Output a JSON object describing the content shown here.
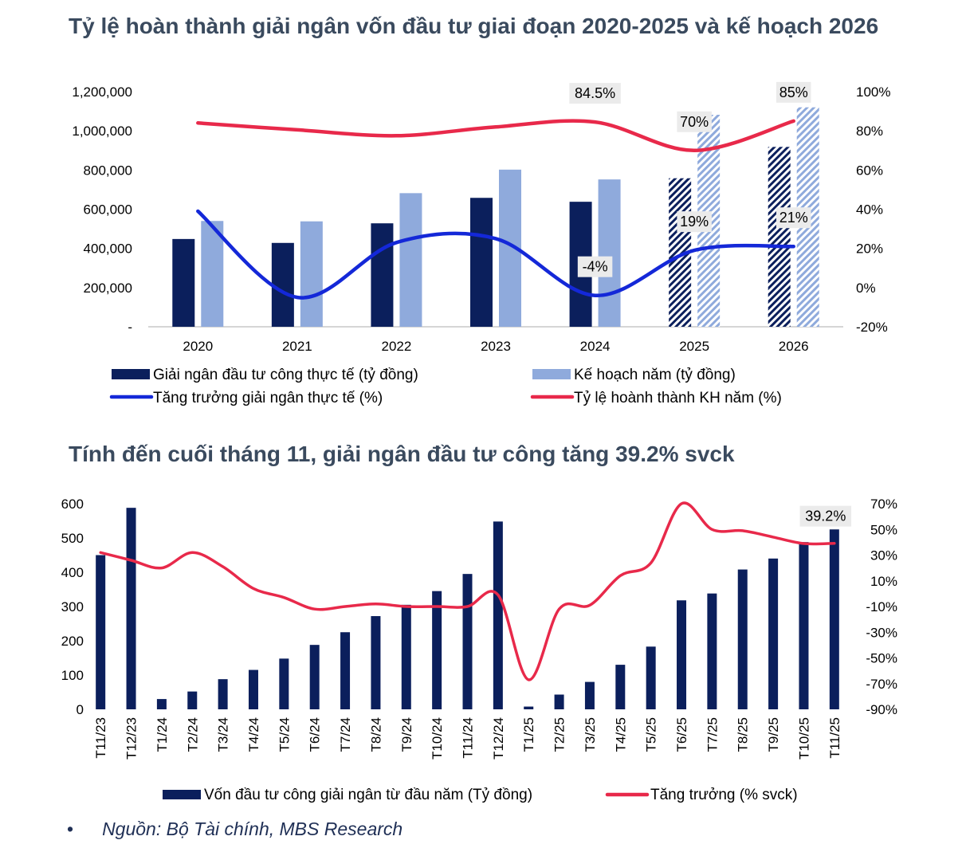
{
  "chart_data": [
    {
      "type": "bar",
      "title": "Tỷ lệ hoàn thành giải ngân vốn đầu tư giai đoạn 2020-2025 và kế hoạch 2026",
      "categories": [
        "2020",
        "2021",
        "2022",
        "2023",
        "2024",
        "2025",
        "2026"
      ],
      "y_left_ticks": [
        "-",
        "200,000",
        "400,000",
        "600,000",
        "800,000",
        "1,000,000",
        "1,200,000"
      ],
      "y_left_range": [
        0,
        1200000
      ],
      "y_right_ticks": [
        "-20%",
        "0%",
        "20%",
        "40%",
        "60%",
        "80%",
        "100%"
      ],
      "y_right_range": [
        -20,
        100
      ],
      "forecast_categories": [
        "2025",
        "2026"
      ],
      "bar_series": [
        {
          "name": "Giải ngân đầu tư công thực tế (tỷ đồng)",
          "color": "#0b1f5c",
          "values": [
            448000,
            428000,
            528000,
            658000,
            638000,
            758000,
            918000
          ]
        },
        {
          "name": "Kế hoạch năm (tỷ đồng)",
          "color": "#8faadc",
          "values": [
            540000,
            538000,
            682000,
            802000,
            752000,
            1082000,
            1120000
          ]
        }
      ],
      "line_series": [
        {
          "name": "Tăng trưởng giải ngân thực tế (%)",
          "color": "#1428d8",
          "values": [
            39,
            -5,
            23,
            25,
            -4,
            19,
            21
          ]
        },
        {
          "name": "Tỷ lệ hoành thành KH năm (%)",
          "color": "#e8294a",
          "values": [
            84,
            80.5,
            77.5,
            82,
            84.5,
            70,
            85
          ]
        }
      ],
      "data_labels": [
        {
          "text": "84.5%",
          "series": 1,
          "index": 4
        },
        {
          "text": "70%",
          "series": 1,
          "index": 5
        },
        {
          "text": "85%",
          "series": 1,
          "index": 6
        },
        {
          "text": "-4%",
          "series": 0,
          "index": 4
        },
        {
          "text": "19%",
          "series": 0,
          "index": 5
        },
        {
          "text": "21%",
          "series": 0,
          "index": 6
        }
      ],
      "legend_position": "bottom"
    },
    {
      "type": "bar",
      "title": "Tính đến cuối tháng 11, giải ngân đầu tư công tăng 39.2% svck",
      "categories": [
        "T11/23",
        "T12/23",
        "T1/24",
        "T2/24",
        "T3/24",
        "T4/24",
        "T5/24",
        "T6/24",
        "T7/24",
        "T8/24",
        "T9/24",
        "T10/24",
        "T11/24",
        "T12/24",
        "T1/25",
        "T2/25",
        "T3/25",
        "T4/25",
        "T5/25",
        "T6/25",
        "T7/25",
        "T8/25",
        "T9/25",
        "T10/25",
        "T11/25"
      ],
      "y_left_ticks": [
        "0",
        "100",
        "200",
        "300",
        "400",
        "500",
        "600"
      ],
      "y_left_range": [
        0,
        600
      ],
      "y_right_ticks": [
        "-90%",
        "-70%",
        "-50%",
        "-30%",
        "-10%",
        "10%",
        "30%",
        "50%",
        "70%"
      ],
      "y_right_range": [
        -90,
        70
      ],
      "bar_series": [
        {
          "name": "Vốn đầu tư công giải ngân từ đầu năm (Tỷ đồng)",
          "color": "#0b1f5c",
          "values": [
            450,
            588,
            30,
            52,
            88,
            115,
            148,
            188,
            225,
            272,
            305,
            345,
            395,
            548,
            8,
            43,
            80,
            130,
            183,
            318,
            338,
            408,
            440,
            488,
            525
          ]
        }
      ],
      "line_series": [
        {
          "name": "Tăng trưởng (% svck)",
          "color": "#e8294a",
          "values": [
            32,
            26,
            20,
            32,
            21,
            4,
            -3,
            -12,
            -10,
            -8,
            -10,
            -10,
            -10,
            -1,
            -67,
            -12,
            -9,
            14,
            24,
            70,
            50,
            49,
            44,
            39,
            39.2
          ]
        }
      ],
      "data_labels": [
        {
          "text": "39.2%",
          "series": 0,
          "index": 24
        }
      ],
      "legend_position": "bottom"
    }
  ],
  "source": {
    "bullet": "•",
    "text": "Nguồn: Bộ Tài chính, MBS Research"
  }
}
